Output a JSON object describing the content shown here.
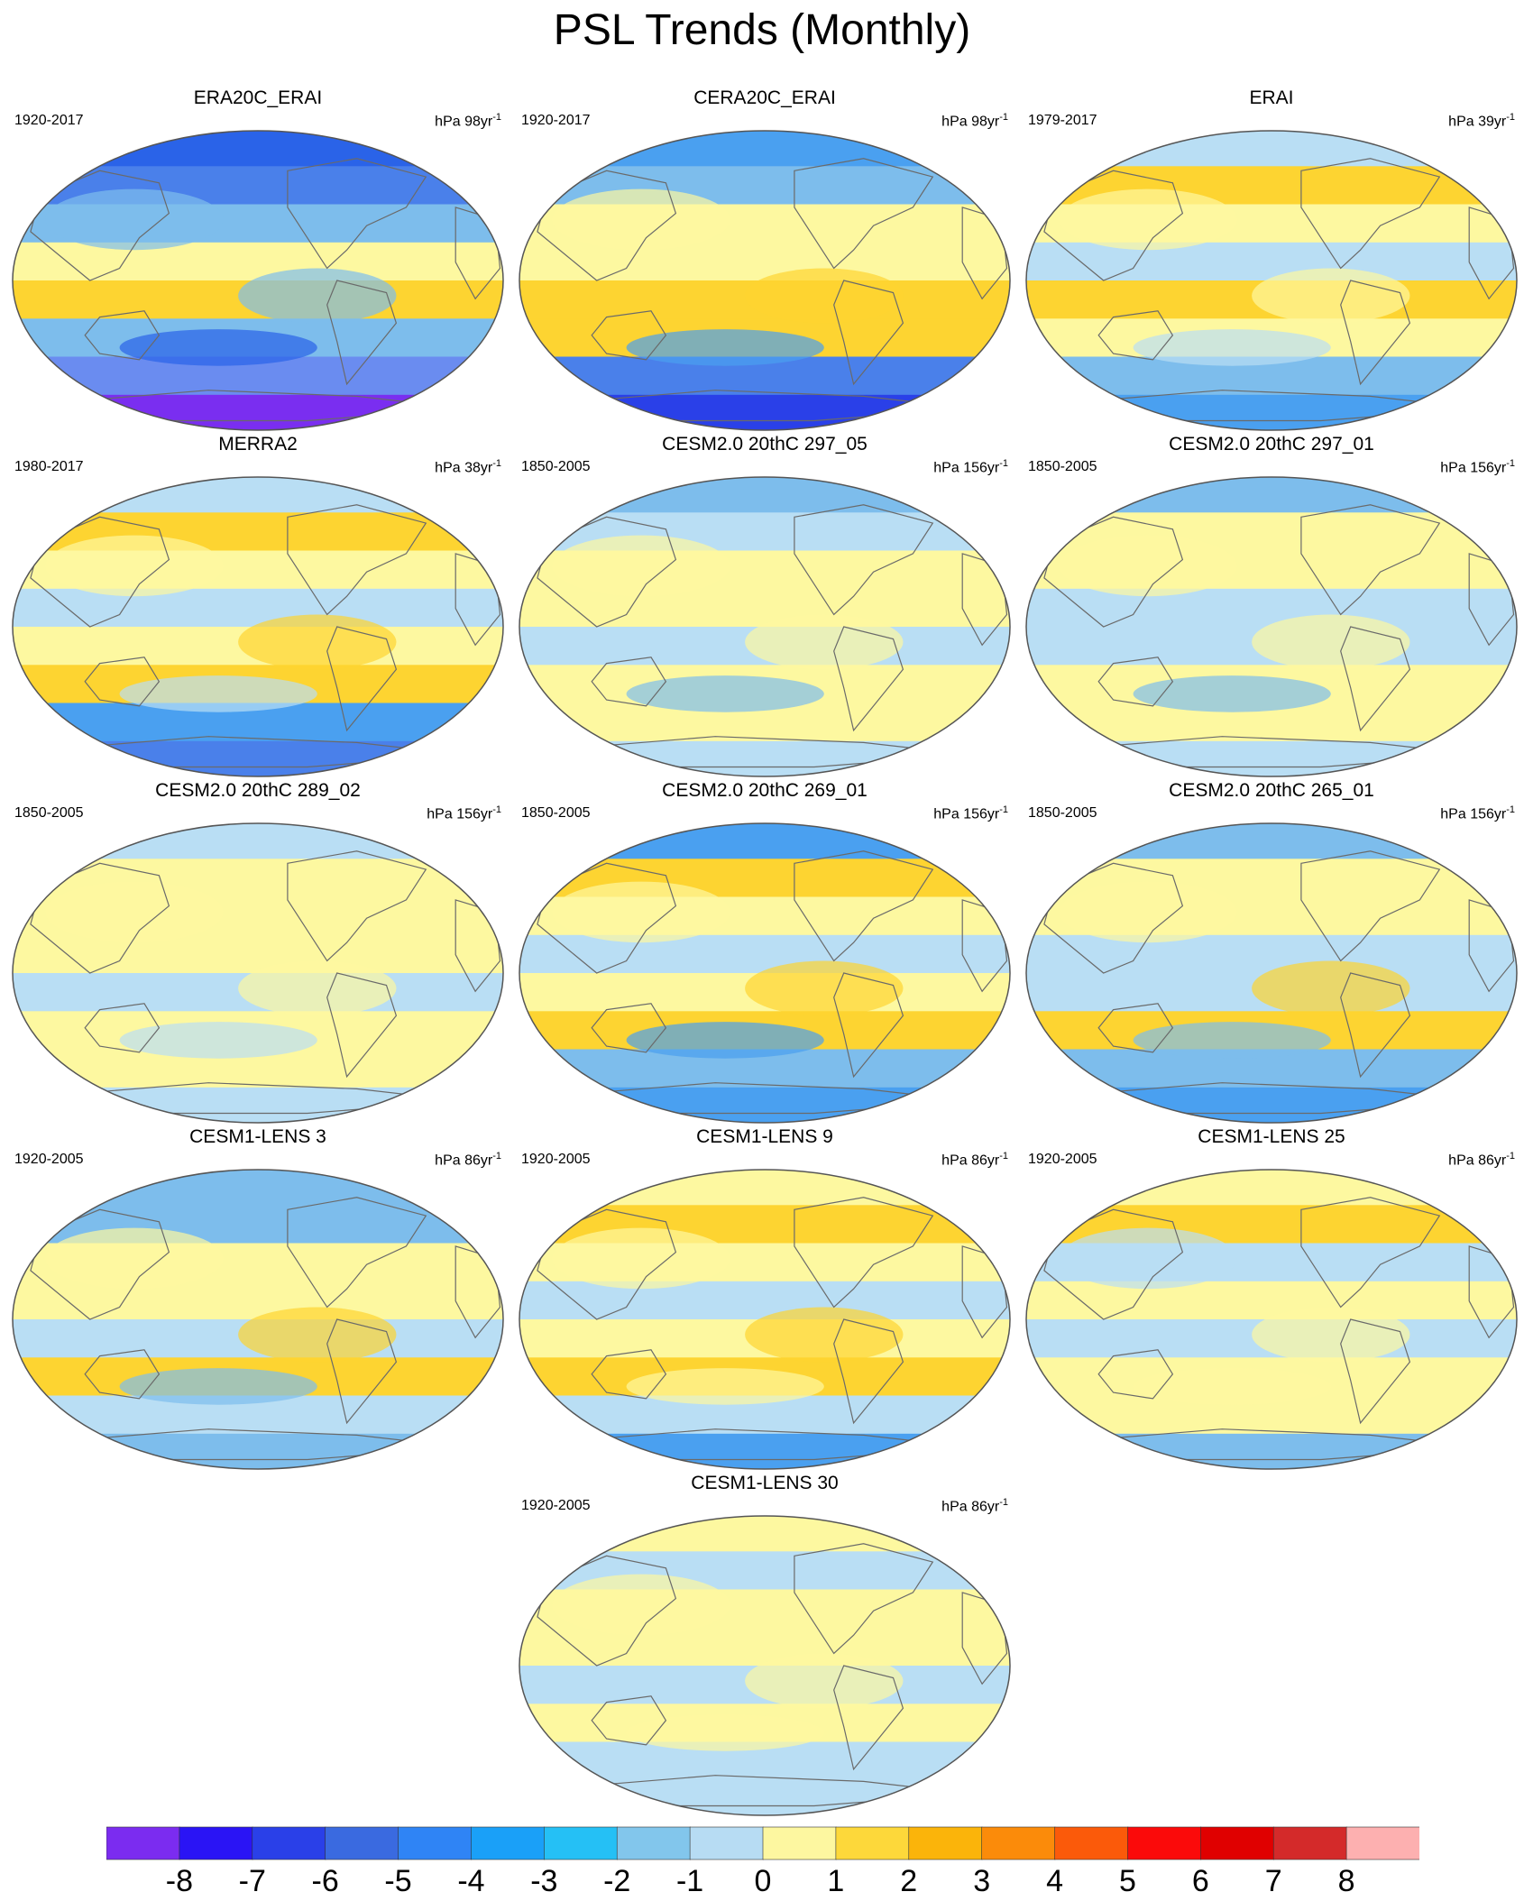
{
  "title": "PSL Trends (Monthly)",
  "colors": {
    "outline": "#555555",
    "coast": "#6a6a6a",
    "ocean_base": "#fdf8a0"
  },
  "panels": [
    {
      "title": "ERA20C_ERAI",
      "period": "1920-2017",
      "units_prefix": "hPa 98yr",
      "units_sup": "-1",
      "bands": [
        [
          "#2a63e8",
          "#4a80ea",
          "#7dbdec",
          "#fdf8a0",
          "#fdd431",
          "#7dbdec",
          "#6a8cf0",
          "#7a2ef0"
        ]
      ]
    },
    {
      "title": "CERA20C_ERAI",
      "period": "1920-2017",
      "units_prefix": "hPa 98yr",
      "units_sup": "-1",
      "bands": [
        [
          "#4aa0f0",
          "#7dbdec",
          "#fdf8a0",
          "#fdf8a0",
          "#fdd431",
          "#fdd431",
          "#4a80ea",
          "#2a40e8"
        ]
      ]
    },
    {
      "title": "ERAI",
      "period": "1979-2017",
      "units_prefix": "hPa 39yr",
      "units_sup": "-1",
      "bands": [
        [
          "#b9def4",
          "#fdd431",
          "#fdf8a0",
          "#b9def4",
          "#fdd431",
          "#fdf8a0",
          "#7dbdec",
          "#4aa0f0"
        ]
      ]
    },
    {
      "title": "MERRA2",
      "period": "1980-2017",
      "units_prefix": "hPa 38yr",
      "units_sup": "-1",
      "bands": [
        [
          "#b9def4",
          "#fdd431",
          "#fdf8a0",
          "#b9def4",
          "#fdf8a0",
          "#fdd431",
          "#4aa0f0",
          "#4a80ea"
        ]
      ]
    },
    {
      "title": "CESM2.0 20thC 297_05",
      "period": "1850-2005",
      "units_prefix": "hPa 156yr",
      "units_sup": "-1",
      "bands": [
        [
          "#7dbdec",
          "#b9def4",
          "#fdf8a0",
          "#fdf8a0",
          "#b9def4",
          "#fdf8a0",
          "#fdf8a0",
          "#b9def4"
        ]
      ]
    },
    {
      "title": "CESM2.0 20thC 297_01",
      "period": "1850-2005",
      "units_prefix": "hPa 156yr",
      "units_sup": "-1",
      "bands": [
        [
          "#7dbdec",
          "#fdf8a0",
          "#fdf8a0",
          "#b9def4",
          "#b9def4",
          "#fdf8a0",
          "#fdf8a0",
          "#b9def4"
        ]
      ]
    },
    {
      "title": "CESM2.0 20thC 289_02",
      "period": "1850-2005",
      "units_prefix": "hPa 156yr",
      "units_sup": "-1",
      "bands": [
        [
          "#b9def4",
          "#fdf8a0",
          "#fdf8a0",
          "#fdf8a0",
          "#b9def4",
          "#fdf8a0",
          "#fdf8a0",
          "#b9def4"
        ]
      ]
    },
    {
      "title": "CESM2.0 20thC 269_01",
      "period": "1850-2005",
      "units_prefix": "hPa 156yr",
      "units_sup": "-1",
      "bands": [
        [
          "#4aa0f0",
          "#fdd431",
          "#fdf8a0",
          "#b9def4",
          "#fdf8a0",
          "#fdd431",
          "#7dbdec",
          "#4aa0f0"
        ]
      ]
    },
    {
      "title": "CESM2.0 20thC 265_01",
      "period": "1850-2005",
      "units_prefix": "hPa 156yr",
      "units_sup": "-1",
      "bands": [
        [
          "#7dbdec",
          "#fdf8a0",
          "#fdf8a0",
          "#b9def4",
          "#b9def4",
          "#fdd431",
          "#7dbdec",
          "#4aa0f0"
        ]
      ]
    },
    {
      "title": "CESM1-LENS 3",
      "period": "1920-2005",
      "units_prefix": "hPa 86yr",
      "units_sup": "-1",
      "bands": [
        [
          "#7dbdec",
          "#7dbdec",
          "#fdf8a0",
          "#fdf8a0",
          "#b9def4",
          "#fdd431",
          "#b9def4",
          "#7dbdec"
        ]
      ]
    },
    {
      "title": "CESM1-LENS 9",
      "period": "1920-2005",
      "units_prefix": "hPa 86yr",
      "units_sup": "-1",
      "bands": [
        [
          "#fdf8a0",
          "#fdd431",
          "#fdf8a0",
          "#b9def4",
          "#fdf8a0",
          "#fdd431",
          "#b9def4",
          "#4aa0f0"
        ]
      ]
    },
    {
      "title": "CESM1-LENS 25",
      "period": "1920-2005",
      "units_prefix": "hPa 86yr",
      "units_sup": "-1",
      "bands": [
        [
          "#fdf8a0",
          "#fdd431",
          "#b9def4",
          "#fdf8a0",
          "#b9def4",
          "#fdf8a0",
          "#fdf8a0",
          "#7dbdec"
        ]
      ]
    },
    {
      "title": "CESM1-LENS 30",
      "period": "1920-2005",
      "units_prefix": "hPa 86yr",
      "units_sup": "-1",
      "bands": [
        [
          "#fdf8a0",
          "#b9def4",
          "#fdf8a0",
          "#fdf8a0",
          "#b9def4",
          "#fdf8a0",
          "#b9def4",
          "#b9def4"
        ]
      ]
    }
  ],
  "colorbar": {
    "colors": [
      "#7b2cf0",
      "#2a14f5",
      "#2a40e8",
      "#3a6ae0",
      "#2f84f5",
      "#1aa0f8",
      "#25c0f5",
      "#82c6ec",
      "#b7dcf3",
      "#fdf7a0",
      "#fdd83a",
      "#fbb40a",
      "#fb8b0a",
      "#fb5a0a",
      "#fb0a0a",
      "#e00000",
      "#d42a2a",
      "#fdb0b0"
    ],
    "labels": [
      "-8",
      "-7",
      "-6",
      "-5",
      "-4",
      "-3",
      "-2",
      "-1",
      "0",
      "1",
      "2",
      "3",
      "4",
      "5",
      "6",
      "7",
      "8"
    ]
  }
}
